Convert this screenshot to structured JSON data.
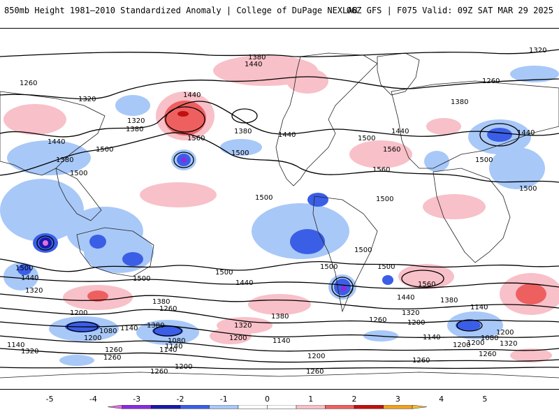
{
  "header": {
    "title": "850mb Height 1981–2010 Standardized Anomaly | College of DuPage NEXLAB",
    "run_info": "06Z GFS | F075 Valid: 09Z SAT MAR 29 2025"
  },
  "colorbar": {
    "ticks": [
      "-5",
      "-4",
      "-3",
      "-2",
      "-1",
      "0",
      "1",
      "2",
      "3",
      "4",
      "5"
    ],
    "segments": [
      {
        "from": -5.5,
        "to": -5,
        "color": "#e070e0"
      },
      {
        "from": -5,
        "to": -4,
        "color": "#8a2be2"
      },
      {
        "from": -4,
        "to": -3,
        "color": "#1a1aa8"
      },
      {
        "from": -3,
        "to": -2,
        "color": "#3b5ee6"
      },
      {
        "from": -2,
        "to": -1,
        "color": "#a8c8f8"
      },
      {
        "from": -1,
        "to": 0,
        "color": "#ffffff"
      },
      {
        "from": 0,
        "to": 1,
        "color": "#ffffff"
      },
      {
        "from": 1,
        "to": 2,
        "color": "#f8c0c8"
      },
      {
        "from": 2,
        "to": 3,
        "color": "#ee6060"
      },
      {
        "from": 3,
        "to": 4,
        "color": "#c01010"
      },
      {
        "from": 4,
        "to": 5,
        "color": "#f0a020"
      },
      {
        "from": 5,
        "to": 5.5,
        "color": "#f0c040"
      }
    ]
  },
  "contour_labels": [
    {
      "text": "1320"
    },
    {
      "text": "1380"
    },
    {
      "text": "1440"
    },
    {
      "text": "1260"
    },
    {
      "text": "1320"
    },
    {
      "text": "1380"
    },
    {
      "text": "1260"
    },
    {
      "text": "1440"
    },
    {
      "text": "1560"
    },
    {
      "text": "1380"
    },
    {
      "text": "1440"
    },
    {
      "text": "1380"
    },
    {
      "text": "1320"
    },
    {
      "text": "1440"
    },
    {
      "text": "1500"
    },
    {
      "text": "1500"
    },
    {
      "text": "1500"
    },
    {
      "text": "1560"
    },
    {
      "text": "1560"
    },
    {
      "text": "1500"
    },
    {
      "text": "1440"
    },
    {
      "text": "1500"
    },
    {
      "text": "1440"
    },
    {
      "text": "1380"
    },
    {
      "text": "1500"
    },
    {
      "text": "1500"
    },
    {
      "text": "1500"
    },
    {
      "text": "1500"
    },
    {
      "text": "1500"
    },
    {
      "text": "1500"
    },
    {
      "text": "1500"
    },
    {
      "text": "1500"
    },
    {
      "text": "1500"
    },
    {
      "text": "1440"
    },
    {
      "text": "1320"
    },
    {
      "text": "1440"
    },
    {
      "text": "1380"
    },
    {
      "text": "1560"
    },
    {
      "text": "1440"
    },
    {
      "text": "1380"
    },
    {
      "text": "1380"
    },
    {
      "text": "1260"
    },
    {
      "text": "1200"
    },
    {
      "text": "1380"
    },
    {
      "text": "1260"
    },
    {
      "text": "1320"
    },
    {
      "text": "1200"
    },
    {
      "text": "1140"
    },
    {
      "text": "1080"
    },
    {
      "text": "1140"
    },
    {
      "text": "1080"
    },
    {
      "text": "1140"
    },
    {
      "text": "1260"
    },
    {
      "text": "1200"
    },
    {
      "text": "1320"
    },
    {
      "text": "1200"
    },
    {
      "text": "1140"
    },
    {
      "text": "1140"
    },
    {
      "text": "1200"
    },
    {
      "text": "1080"
    },
    {
      "text": "1200"
    },
    {
      "text": "1140"
    },
    {
      "text": "1260"
    },
    {
      "text": "1200"
    },
    {
      "text": "1200"
    },
    {
      "text": "1260"
    },
    {
      "text": "1260"
    },
    {
      "text": "1320"
    },
    {
      "text": "1260"
    },
    {
      "text": "1140"
    },
    {
      "text": "1200"
    },
    {
      "text": "1320"
    },
    {
      "text": "1260"
    }
  ]
}
